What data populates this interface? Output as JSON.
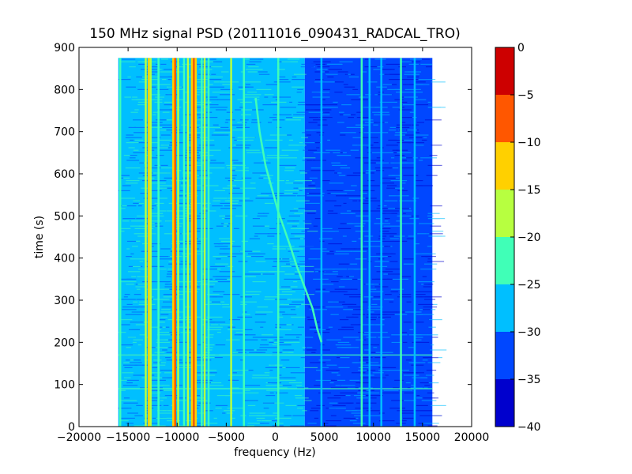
{
  "chart_data": {
    "type": "heatmap",
    "title": "150 MHz signal PSD (20111016_090431_RADCAL_TRO)",
    "xlabel": "frequency (Hz)",
    "ylabel": "time (s)",
    "xlim": [
      -20000,
      20000
    ],
    "ylim": [
      0,
      900
    ],
    "xticks": [
      -20000,
      -15000,
      -10000,
      -5000,
      0,
      5000,
      10000,
      15000,
      20000
    ],
    "yticks": [
      0,
      100,
      200,
      300,
      400,
      500,
      600,
      700,
      800,
      900
    ],
    "data_extent": {
      "x": [
        -16000,
        16000
      ],
      "y": [
        0,
        875
      ]
    },
    "colorbar": {
      "ticks": [
        0,
        -5,
        -10,
        -15,
        -20,
        -25,
        -30,
        -35,
        -40
      ],
      "levels": [
        {
          "range": [
            -40,
            -35
          ],
          "color": "#0000cd"
        },
        {
          "range": [
            -35,
            -30
          ],
          "color": "#0047ff"
        },
        {
          "range": [
            -30,
            -25
          ],
          "color": "#00bfff"
        },
        {
          "range": [
            -25,
            -20
          ],
          "color": "#40ffb7"
        },
        {
          "range": [
            -20,
            -15
          ],
          "color": "#b7ff40"
        },
        {
          "range": [
            -15,
            -10
          ],
          "color": "#ffd000"
        },
        {
          "range": [
            -10,
            -5
          ],
          "color": "#ff5700"
        },
        {
          "range": [
            -5,
            0
          ],
          "color": "#cd0000"
        }
      ]
    },
    "background_regions": [
      {
        "x": [
          -16000,
          3000
        ],
        "level": -27
      },
      {
        "x": [
          3000,
          16000
        ],
        "level": -33
      }
    ],
    "carriers": [
      {
        "x": -15800,
        "level": -22
      },
      {
        "x": -13200,
        "level": -17
      },
      {
        "x": -12900,
        "level": -12
      },
      {
        "x": -12700,
        "level": -17
      },
      {
        "x": -11900,
        "level": -22
      },
      {
        "x": -10400,
        "level": -12
      },
      {
        "x": -10200,
        "level": -7
      },
      {
        "x": -9900,
        "level": -17
      },
      {
        "x": -9300,
        "level": -22
      },
      {
        "x": -8900,
        "level": -17
      },
      {
        "x": -8500,
        "level": -12
      },
      {
        "x": -8300,
        "level": -7
      },
      {
        "x": -8100,
        "level": -12
      },
      {
        "x": -7500,
        "level": -22
      },
      {
        "x": -7200,
        "level": -17
      },
      {
        "x": -6800,
        "level": -22
      },
      {
        "x": -4500,
        "level": -17
      },
      {
        "x": -3200,
        "level": -22
      },
      {
        "x": 300,
        "level": -22
      },
      {
        "x": 4700,
        "level": -27
      },
      {
        "x": 8800,
        "level": -22
      },
      {
        "x": 9600,
        "level": -27
      },
      {
        "x": 10800,
        "level": -27
      },
      {
        "x": 12800,
        "level": -22
      },
      {
        "x": 14200,
        "level": -27
      }
    ],
    "drifting_signal": {
      "level": -22,
      "points": [
        [
          -2000,
          780
        ],
        [
          -1600,
          700
        ],
        [
          -1000,
          620
        ],
        [
          -300,
          560
        ],
        [
          300,
          510
        ],
        [
          900,
          470
        ],
        [
          1500,
          430
        ],
        [
          2200,
          380
        ],
        [
          3000,
          330
        ],
        [
          3800,
          280
        ],
        [
          4300,
          230
        ],
        [
          4700,
          200
        ]
      ]
    },
    "horizontal_bands": [
      {
        "y": 170,
        "level": -22
      },
      {
        "y": 90,
        "level": -22
      }
    ]
  }
}
